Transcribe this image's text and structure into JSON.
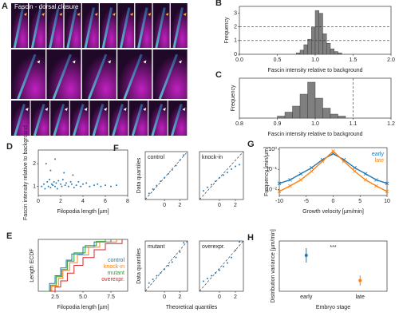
{
  "figure": {
    "panel_a": {
      "label": "A",
      "title": "Fascin - dorsal closure"
    }
  },
  "chart_data": [
    {
      "type": "histogram",
      "panel": "B",
      "xlabel": "Fascin intensity relative to background",
      "ylabel": "Frequency",
      "color": "#7f7f7f",
      "bins": [
        0.75,
        0.8,
        0.85,
        0.9,
        0.95,
        1.0,
        1.05,
        1.1,
        1.15,
        1.2,
        1.25,
        1.3,
        1.35
      ],
      "counts": [
        0.1,
        0.3,
        0.7,
        1.1,
        2.0,
        3.2,
        3.0,
        1.5,
        0.8,
        0.4,
        0.2,
        0.1
      ],
      "xlim": [
        0,
        2
      ],
      "xticks": [
        {
          "value": 0,
          "label": "0.0"
        },
        0.5,
        {
          "value": 1,
          "label": "1.0"
        },
        1.5,
        {
          "value": 2,
          "label": "2.0"
        }
      ],
      "ylim": [
        0,
        3.5
      ],
      "yticks": [
        0,
        1,
        2,
        3
      ],
      "hlines": [
        1,
        2
      ]
    },
    {
      "type": "histogram",
      "panel": "C",
      "xlabel": "Fascin intensity relative to background",
      "ylabel": "Frequency",
      "color": "#7f7f7f",
      "bins": [
        0.9,
        0.92,
        0.94,
        0.96,
        0.98,
        1.0,
        1.02,
        1.04,
        1.06,
        1.08
      ],
      "counts": [
        1,
        3,
        6,
        12,
        18,
        10,
        5,
        2,
        1
      ],
      "xlim": [
        0.8,
        1.2
      ],
      "xticks": [
        0.8,
        0.9,
        {
          "value": 1,
          "label": "1.0"
        },
        1.1,
        1.2
      ],
      "ylim": [
        0,
        20
      ],
      "vlines": [
        1.1
      ]
    },
    {
      "type": "scatter",
      "panel": "D",
      "xlabel": "Filopodia length [µm]",
      "ylabel": "Fascin intensity relative to background",
      "color": "#2b7bb9",
      "x": [
        0.3,
        0.5,
        0.6,
        0.8,
        0.9,
        1.0,
        1.1,
        1.2,
        1.3,
        1.4,
        1.5,
        1.6,
        1.7,
        1.8,
        2.0,
        2.1,
        2.2,
        2.4,
        2.5,
        2.7,
        2.9,
        3.0,
        3.2,
        3.4,
        3.6,
        3.8,
        4.0,
        4.3,
        4.6,
        5.0,
        5.3,
        5.6,
        6.0,
        6.5,
        7.0,
        0.7,
        1.1,
        1.5,
        2.3,
        3.1
      ],
      "values": [
        1.0,
        1.1,
        0.9,
        1.2,
        1.0,
        1.3,
        0.95,
        1.1,
        1.05,
        1.2,
        1.0,
        1.15,
        0.9,
        1.25,
        1.1,
        1.0,
        1.3,
        1.05,
        1.15,
        1.0,
        1.2,
        1.1,
        0.95,
        1.05,
        1.2,
        1.0,
        1.1,
        1.15,
        1.0,
        1.05,
        1.1,
        1.0,
        1.05,
        1.0,
        1.05,
        2.0,
        1.7,
        2.2,
        1.6,
        1.5
      ],
      "xlim": [
        0,
        8
      ],
      "xticks": [
        0,
        2,
        4,
        6,
        8
      ],
      "ylim": [
        0.6,
        2.6
      ],
      "yticks": [
        1,
        2
      ]
    },
    {
      "type": "ecdf",
      "panel": "E",
      "xlabel": "Filopodia length [µm]",
      "ylabel": "Length ECDF",
      "xlim": [
        1,
        9
      ],
      "xticks": [
        {
          "value": 2.5,
          "label": "2.5"
        },
        {
          "value": 5,
          "label": "5.0"
        },
        {
          "value": 7.5,
          "label": "7.5"
        }
      ],
      "ylim": [
        0,
        1
      ],
      "series": [
        {
          "name": "control",
          "color": "#1f77b4",
          "x": [
            1.5,
            2,
            2.5,
            3,
            3.5,
            4,
            5,
            6,
            7.5
          ],
          "values": [
            0,
            0.15,
            0.3,
            0.45,
            0.6,
            0.72,
            0.85,
            0.95,
            1
          ]
        },
        {
          "name": "knock-in",
          "color": "#ff7f0e",
          "x": [
            1.8,
            2.2,
            2.8,
            3.2,
            3.8,
            4.5,
            5.5,
            6.5,
            8
          ],
          "values": [
            0,
            0.1,
            0.25,
            0.4,
            0.55,
            0.7,
            0.85,
            0.95,
            1
          ]
        },
        {
          "name": "mutant",
          "color": "#2ca02c",
          "x": [
            1.6,
            2.1,
            2.6,
            3.1,
            3.6,
            4.2,
            5.2,
            6.2,
            7
          ],
          "values": [
            0,
            0.12,
            0.28,
            0.42,
            0.58,
            0.74,
            0.88,
            0.96,
            1
          ]
        },
        {
          "name": "overexpr.",
          "color": "#d62728",
          "x": [
            2,
            2.5,
            3,
            3.6,
            4.2,
            5,
            6,
            7,
            8.5
          ],
          "values": [
            0,
            0.08,
            0.2,
            0.35,
            0.5,
            0.65,
            0.8,
            0.92,
            1
          ]
        }
      ]
    },
    {
      "type": "qq",
      "panel": "F",
      "title": "control",
      "ylabel": "Data quantiles",
      "color": "#2b7bb9",
      "x": [
        -2,
        -1.5,
        -1,
        -0.5,
        0,
        0.5,
        1,
        1.5,
        2,
        2.5
      ],
      "values": [
        -1.8,
        -1.3,
        -0.9,
        -0.4,
        0,
        0.45,
        0.9,
        1.4,
        2,
        2.6
      ],
      "ref": {
        "x": [
          -2.5,
          3
        ],
        "values": [
          -2.5,
          3
        ]
      },
      "xlim": [
        -2.5,
        3
      ],
      "xticks": [
        0,
        2
      ],
      "ylim": [
        -2.5,
        3
      ]
    },
    {
      "type": "qq",
      "title": "knock-in",
      "color": "#2b7bb9",
      "x": [
        -2,
        -1.5,
        -1,
        -0.5,
        0,
        0.5,
        1,
        1.5,
        2,
        2.5
      ],
      "values": [
        -1.5,
        -1.1,
        -0.8,
        -0.4,
        0,
        0.3,
        0.6,
        1,
        1.3,
        1.5
      ],
      "ref": {
        "x": [
          -2.5,
          3
        ],
        "values": [
          -2.5,
          3
        ]
      },
      "xlim": [
        -2.5,
        3
      ],
      "xticks": [
        0,
        2
      ],
      "ylim": [
        -2.5,
        3
      ]
    },
    {
      "type": "qq",
      "title": "mutant",
      "ylabel": "Data quantiles",
      "color": "#2b7bb9",
      "x": [
        -2,
        -1.5,
        -1,
        -0.5,
        0,
        0.5,
        1,
        1.5,
        2,
        2.5
      ],
      "values": [
        -1.6,
        -1.2,
        -0.8,
        -0.5,
        -0.1,
        0.3,
        0.7,
        1.2,
        1.8,
        2.8
      ],
      "ref": {
        "x": [
          -2.5,
          3
        ],
        "values": [
          -2.5,
          3
        ]
      },
      "xlim": [
        -2.5,
        3
      ],
      "xticks": [
        0,
        2
      ],
      "ylim": [
        -2.5,
        3
      ]
    },
    {
      "type": "qq",
      "title": "overexpr.",
      "xlabel": "Theoretical quantiles",
      "color": "#2b7bb9",
      "x": [
        -2,
        -1.5,
        -1,
        -0.5,
        0,
        0.5,
        1,
        1.5,
        2,
        2.5
      ],
      "values": [
        -1.4,
        -1.1,
        -0.8,
        -0.5,
        -0.2,
        0.2,
        0.6,
        1.2,
        2,
        2.9
      ],
      "ref": {
        "x": [
          -2.5,
          3
        ],
        "values": [
          -2.5,
          3
        ]
      },
      "xlim": [
        -2.5,
        3
      ],
      "xticks": [
        0,
        2
      ],
      "ylim": [
        -2.5,
        3
      ]
    },
    {
      "type": "logline",
      "panel": "G",
      "xlabel": "Growth velocity [µm/min]",
      "ylabel": "Frequency [min/µm]",
      "xlim": [
        -10,
        10
      ],
      "xticks": [
        -10,
        -5,
        0,
        5,
        10
      ],
      "ylim": [
        0.005,
        1.2
      ],
      "log_y": true,
      "yticks": [
        {
          "value": 0.01,
          "label": "10⁻²"
        },
        {
          "value": 0.1,
          "label": "10⁻¹"
        },
        {
          "value": 1,
          "label": "10⁰"
        }
      ],
      "legend": "upper right",
      "series": [
        {
          "name": "early",
          "color": "#1f77b4",
          "x": [
            -10,
            -8,
            -6,
            -4,
            -2,
            0,
            2,
            4,
            6,
            8,
            10
          ],
          "values": [
            0.02,
            0.03,
            0.06,
            0.12,
            0.3,
            0.6,
            0.3,
            0.12,
            0.06,
            0.03,
            0.02
          ]
        },
        {
          "name": "late",
          "color": "#ff7f0e",
          "x": [
            -10,
            -8,
            -6,
            -4,
            -2,
            0,
            2,
            4,
            6,
            8,
            10
          ],
          "values": [
            0.008,
            0.015,
            0.03,
            0.08,
            0.25,
            0.8,
            0.25,
            0.08,
            0.03,
            0.015,
            0.008
          ]
        }
      ]
    },
    {
      "type": "errorbar",
      "panel": "H",
      "xlabel": "Embryo stage",
      "ylabel": "Distribution variance [µm/min]",
      "categories": [
        "early",
        "late"
      ],
      "values": [
        80,
        45
      ],
      "errors": [
        10,
        7
      ],
      "colors": [
        "#1f77b4",
        "#ff7f0e"
      ],
      "ylim": [
        30,
        100
      ],
      "annotation": "***"
    }
  ]
}
